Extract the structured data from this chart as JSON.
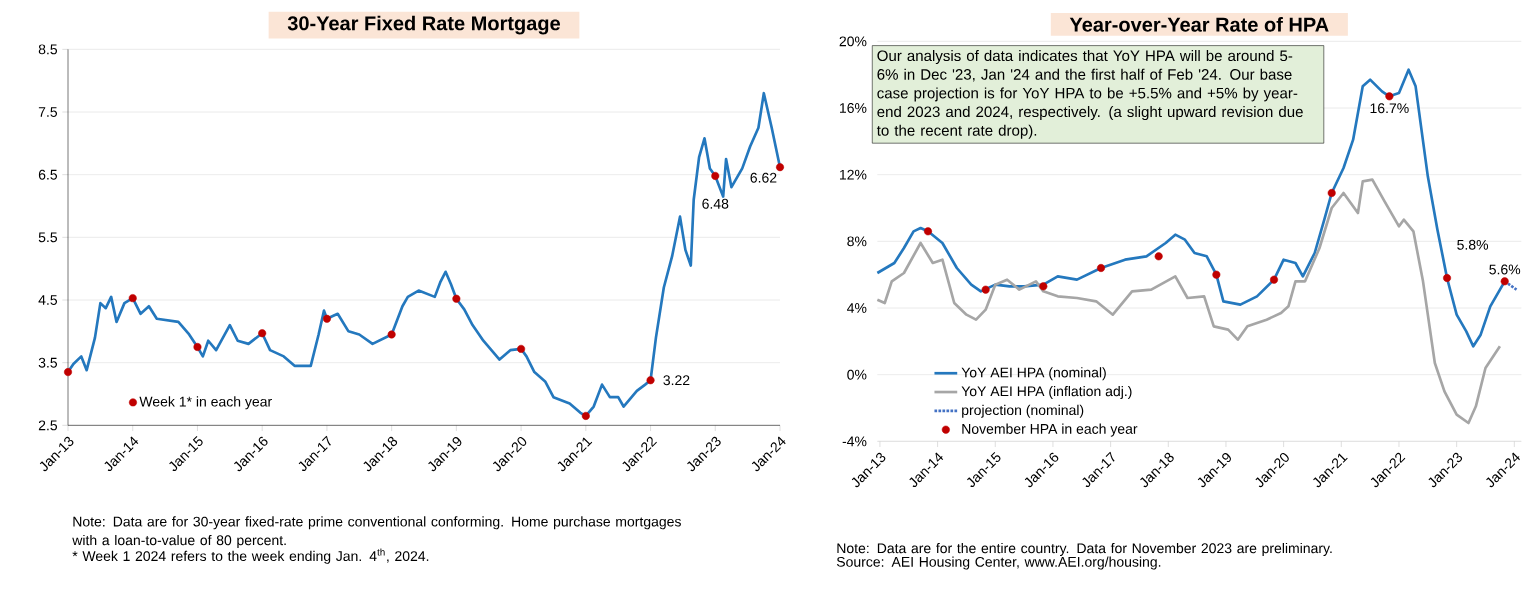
{
  "chart_data": [
    {
      "type": "line",
      "title": "30-Year Fixed Rate Mortgage",
      "xlim": [
        "2013-01-01",
        "2024-01-01"
      ],
      "ylim": [
        2.5,
        8.5
      ],
      "xticks": [
        {
          "value": "2013-01",
          "label": "Jan-13"
        },
        {
          "value": "2014-01",
          "label": "Jan-14"
        },
        {
          "value": "2015-01",
          "label": "Jan-15"
        },
        {
          "value": "2016-01",
          "label": "Jan-16"
        },
        {
          "value": "2017-01",
          "label": "Jan-17"
        },
        {
          "value": "2018-01",
          "label": "Jan-18"
        },
        {
          "value": "2019-01",
          "label": "Jan-19"
        },
        {
          "value": "2020-01",
          "label": "Jan-20"
        },
        {
          "value": "2021-01",
          "label": "Jan-21"
        },
        {
          "value": "2022-01",
          "label": "Jan-22"
        },
        {
          "value": "2023-01",
          "label": "Jan-23"
        },
        {
          "value": "2024-01",
          "label": "Jan-24"
        }
      ],
      "yticks": [
        2.5,
        3.5,
        4.5,
        5.5,
        6.5,
        7.5,
        8.5
      ],
      "grid": "y",
      "legend": "bottom left",
      "series": [
        {
          "color": "#2478be",
          "x": [
            "2013-01-01",
            "2013-02-01",
            "2013-03-15",
            "2013-04-15",
            "2013-06-01",
            "2013-07-01",
            "2013-08-01",
            "2013-09-01",
            "2013-10-01",
            "2013-11-15",
            "2014-01-01",
            "2014-02-15",
            "2014-04-01",
            "2014-05-15",
            "2014-09-15",
            "2014-11-15",
            "2015-01-01",
            "2015-02-01",
            "2015-03-01",
            "2015-04-15",
            "2015-07-01",
            "2015-08-15",
            "2015-10-15",
            "2016-01-01",
            "2016-02-15",
            "2016-05-01",
            "2016-07-01",
            "2016-10-01",
            "2016-11-15",
            "2016-12-15",
            "2017-01-01",
            "2017-03-01",
            "2017-05-01",
            "2017-07-01",
            "2017-09-15",
            "2018-01-01",
            "2018-03-01",
            "2018-04-01",
            "2018-06-01",
            "2018-09-01",
            "2018-10-01",
            "2018-11-01",
            "2018-12-01",
            "2019-01-01",
            "2019-02-15",
            "2019-04-01",
            "2019-06-01",
            "2019-09-01",
            "2019-11-01",
            "2020-01-01",
            "2020-02-01",
            "2020-03-15",
            "2020-05-15",
            "2020-07-01",
            "2020-10-01",
            "2020-12-01",
            "2021-01-01",
            "2021-02-15",
            "2021-04-01",
            "2021-05-15",
            "2021-07-01",
            "2021-08-01",
            "2021-10-15",
            "2021-12-01",
            "2022-01-01",
            "2022-02-01",
            "2022-03-15",
            "2022-05-01",
            "2022-06-15",
            "2022-07-15",
            "2022-08-15",
            "2022-09-01",
            "2022-10-01",
            "2022-11-01",
            "2022-12-01",
            "2023-01-01",
            "2023-02-15",
            "2023-03-01",
            "2023-04-01",
            "2023-06-01",
            "2023-07-15",
            "2023-09-01",
            "2023-10-01",
            "2023-11-15",
            "2024-01-01"
          ],
          "values": [
            3.35,
            3.48,
            3.6,
            3.38,
            3.9,
            4.45,
            4.37,
            4.55,
            4.15,
            4.45,
            4.53,
            4.28,
            4.4,
            4.2,
            4.15,
            3.95,
            3.75,
            3.6,
            3.85,
            3.7,
            4.1,
            3.85,
            3.8,
            3.97,
            3.7,
            3.6,
            3.45,
            3.45,
            3.95,
            4.33,
            4.2,
            4.28,
            4.0,
            3.95,
            3.8,
            3.95,
            4.4,
            4.55,
            4.65,
            4.55,
            4.78,
            4.95,
            4.75,
            4.52,
            4.35,
            4.1,
            3.85,
            3.55,
            3.7,
            3.72,
            3.6,
            3.35,
            3.2,
            2.95,
            2.85,
            2.7,
            2.65,
            2.8,
            3.15,
            2.95,
            2.95,
            2.8,
            3.05,
            3.15,
            3.22,
            3.9,
            4.7,
            5.2,
            5.83,
            5.3,
            5.05,
            6.1,
            6.78,
            7.08,
            6.6,
            6.48,
            6.15,
            6.75,
            6.3,
            6.6,
            6.95,
            7.25,
            7.8,
            7.25,
            6.62
          ]
        },
        {
          "type": "scatter",
          "name": "Week 1* in each year",
          "color": "#c00000",
          "marker": "circle",
          "x": [
            "2013-01-01",
            "2014-01-01",
            "2015-01-01",
            "2016-01-01",
            "2017-01-01",
            "2018-01-01",
            "2019-01-01",
            "2020-01-01",
            "2021-01-01",
            "2022-01-01",
            "2023-01-01",
            "2024-01-01"
          ],
          "values": [
            3.35,
            4.53,
            3.75,
            3.97,
            4.2,
            3.95,
            4.52,
            3.72,
            2.65,
            3.22,
            6.48,
            6.62
          ],
          "value_labels": [
            null,
            null,
            null,
            null,
            null,
            null,
            null,
            null,
            null,
            "3.22",
            "6.48",
            "6.62"
          ]
        }
      ],
      "annotations": [
        "Note: Data are for 30-year fixed-rate prime conventional conforming. Home purchase mortgages with a loan-to-value of 80 percent.",
        "* Week 1 2024 refers to the week ending Jan. 4$^{th}$, 2024."
      ]
    },
    {
      "type": "line",
      "title": "Year-over-Year Rate of HPA",
      "xlim": [
        "2012-12-15",
        "2024-02-15"
      ],
      "ylim": [
        -4,
        20
      ],
      "xticks": [
        {
          "value": "2013-01",
          "label": "Jan-13"
        },
        {
          "value": "2014-01",
          "label": "Jan-14"
        },
        {
          "value": "2015-01",
          "label": "Jan-15"
        },
        {
          "value": "2016-01",
          "label": "Jan-16"
        },
        {
          "value": "2017-01",
          "label": "Jan-17"
        },
        {
          "value": "2018-01",
          "label": "Jan-18"
        },
        {
          "value": "2019-01",
          "label": "Jan-19"
        },
        {
          "value": "2020-01",
          "label": "Jan-20"
        },
        {
          "value": "2021-01",
          "label": "Jan-21"
        },
        {
          "value": "2022-01",
          "label": "Jan-22"
        },
        {
          "value": "2023-01",
          "label": "Jan-23"
        },
        {
          "value": "2024-01",
          "label": "Jan-24"
        }
      ],
      "yticks": [
        {
          "value": -4,
          "label": "-4%"
        },
        {
          "value": 0,
          "label": "0%"
        },
        {
          "value": 4,
          "label": "4%"
        },
        {
          "value": 8,
          "label": "8%"
        },
        {
          "value": 12,
          "label": "12%"
        },
        {
          "value": 16,
          "label": "16%"
        },
        {
          "value": 20,
          "label": "20%"
        }
      ],
      "grid": "y",
      "legend": "bottom left",
      "series": [
        {
          "name": "YoY AEI HPA (nominal)",
          "color": "#2478be",
          "x": [
            "2012-12-15",
            "2013-04-01",
            "2013-06-01",
            "2013-08-01",
            "2013-09-15",
            "2013-11-01",
            "2014-02-01",
            "2014-05-01",
            "2014-08-01",
            "2014-10-01",
            "2015-01-01",
            "2015-04-01",
            "2015-07-01",
            "2015-11-01",
            "2016-02-01",
            "2016-06-01",
            "2016-11-01",
            "2017-04-01",
            "2017-08-15",
            "2017-12-15",
            "2018-02-15",
            "2018-04-15",
            "2018-06-15",
            "2018-09-01",
            "2018-11-01",
            "2018-12-15",
            "2019-04-01",
            "2019-07-15",
            "2019-11-01",
            "2020-01-01",
            "2020-03-15",
            "2020-05-01",
            "2020-07-15",
            "2020-09-15",
            "2020-11-01",
            "2021-01-15",
            "2021-03-15",
            "2021-05-15",
            "2021-07-01",
            "2021-09-15",
            "2021-11-01",
            "2022-01-01",
            "2022-03-01",
            "2022-04-15",
            "2022-07-01",
            "2022-09-01",
            "2022-11-01",
            "2023-01-01",
            "2023-03-01",
            "2023-04-15",
            "2023-06-01",
            "2023-08-01",
            "2023-11-01"
          ],
          "values": [
            6.1,
            6.7,
            7.6,
            8.6,
            8.8,
            8.6,
            7.9,
            6.4,
            5.4,
            5.0,
            5.4,
            5.3,
            5.3,
            5.4,
            5.9,
            5.7,
            6.4,
            6.9,
            7.1,
            7.9,
            8.4,
            8.1,
            7.3,
            7.1,
            6.0,
            4.4,
            4.2,
            4.7,
            5.7,
            6.9,
            6.7,
            5.9,
            7.3,
            9.3,
            10.9,
            12.4,
            14.1,
            17.3,
            17.7,
            17.0,
            16.7,
            16.9,
            18.3,
            17.3,
            11.9,
            8.7,
            5.8,
            3.6,
            2.6,
            1.7,
            2.4,
            4.1,
            5.6
          ]
        },
        {
          "name": "YoY AEI HPA (inflation adj.)",
          "color": "#a6a6a6",
          "x": [
            "2012-12-15",
            "2013-02-01",
            "2013-03-15",
            "2013-06-01",
            "2013-09-15",
            "2013-12-01",
            "2014-02-01",
            "2014-04-15",
            "2014-07-01",
            "2014-09-01",
            "2014-11-01",
            "2015-01-01",
            "2015-03-15",
            "2015-06-01",
            "2015-09-15",
            "2015-11-01",
            "2016-02-01",
            "2016-06-01",
            "2016-10-01",
            "2017-01-15",
            "2017-05-15",
            "2017-09-15",
            "2018-02-15",
            "2018-05-01",
            "2018-08-15",
            "2018-10-15",
            "2019-01-15",
            "2019-03-15",
            "2019-05-15",
            "2019-09-15",
            "2019-12-15",
            "2020-02-01",
            "2020-03-15",
            "2020-05-15",
            "2020-08-15",
            "2020-11-01",
            "2021-01-15",
            "2021-04-15",
            "2021-05-15",
            "2021-07-15",
            "2021-10-01",
            "2022-01-01",
            "2022-02-01",
            "2022-04-01",
            "2022-06-01",
            "2022-08-15",
            "2022-10-15",
            "2023-01-01",
            "2023-03-15",
            "2023-05-01",
            "2023-07-01",
            "2023-10-01"
          ],
          "values": [
            4.5,
            4.3,
            5.6,
            6.1,
            7.9,
            6.7,
            6.9,
            4.3,
            3.6,
            3.3,
            3.9,
            5.4,
            5.7,
            5.1,
            5.6,
            5.0,
            4.7,
            4.6,
            4.4,
            3.6,
            5.0,
            5.1,
            5.9,
            4.6,
            4.7,
            2.9,
            2.7,
            2.1,
            2.9,
            3.3,
            3.7,
            4.1,
            5.6,
            5.6,
            7.6,
            10.0,
            10.9,
            9.7,
            11.6,
            11.7,
            10.4,
            8.9,
            9.3,
            8.6,
            5.6,
            0.7,
            -1.0,
            -2.4,
            -2.9,
            -1.9,
            0.4,
            1.7
          ]
        },
        {
          "name": "projection (nominal)",
          "color": "#4472c4",
          "line_style": "dotted",
          "x": [
            "2023-11-01",
            "2024-01-15"
          ],
          "values": [
            5.6,
            5.1
          ]
        },
        {
          "type": "scatter",
          "name": "November HPA in each year",
          "color": "#c00000",
          "marker": "circle",
          "x": [
            "2013-11-01",
            "2014-11-01",
            "2015-11-01",
            "2016-11-01",
            "2017-11-01",
            "2018-11-01",
            "2019-11-01",
            "2020-11-01",
            "2021-11-01",
            "2022-11-01",
            "2023-11-01"
          ],
          "values": [
            8.6,
            5.1,
            5.3,
            6.4,
            7.1,
            6.0,
            5.7,
            10.9,
            16.7,
            5.8,
            5.6
          ],
          "value_labels": [
            null,
            null,
            null,
            null,
            null,
            null,
            null,
            null,
            "16.7%",
            "5.8%",
            "5.6%"
          ]
        }
      ],
      "annotations": [
        "Our analysis of data indicates that YoY HPA will be around 5-6% in Dec '23, Jan '24 and the first half of Feb '24. Our base case projection is for YoY HPA to be +5.5% and +5% by year-end 2023 and 2024, respectively. (a slight upward revision due to the recent rate drop).",
        "Note: Data are for the entire country. Data for November 2023 are preliminary.",
        "Source: AEI Housing Center, www.AEI.org/housing."
      ]
    }
  ]
}
